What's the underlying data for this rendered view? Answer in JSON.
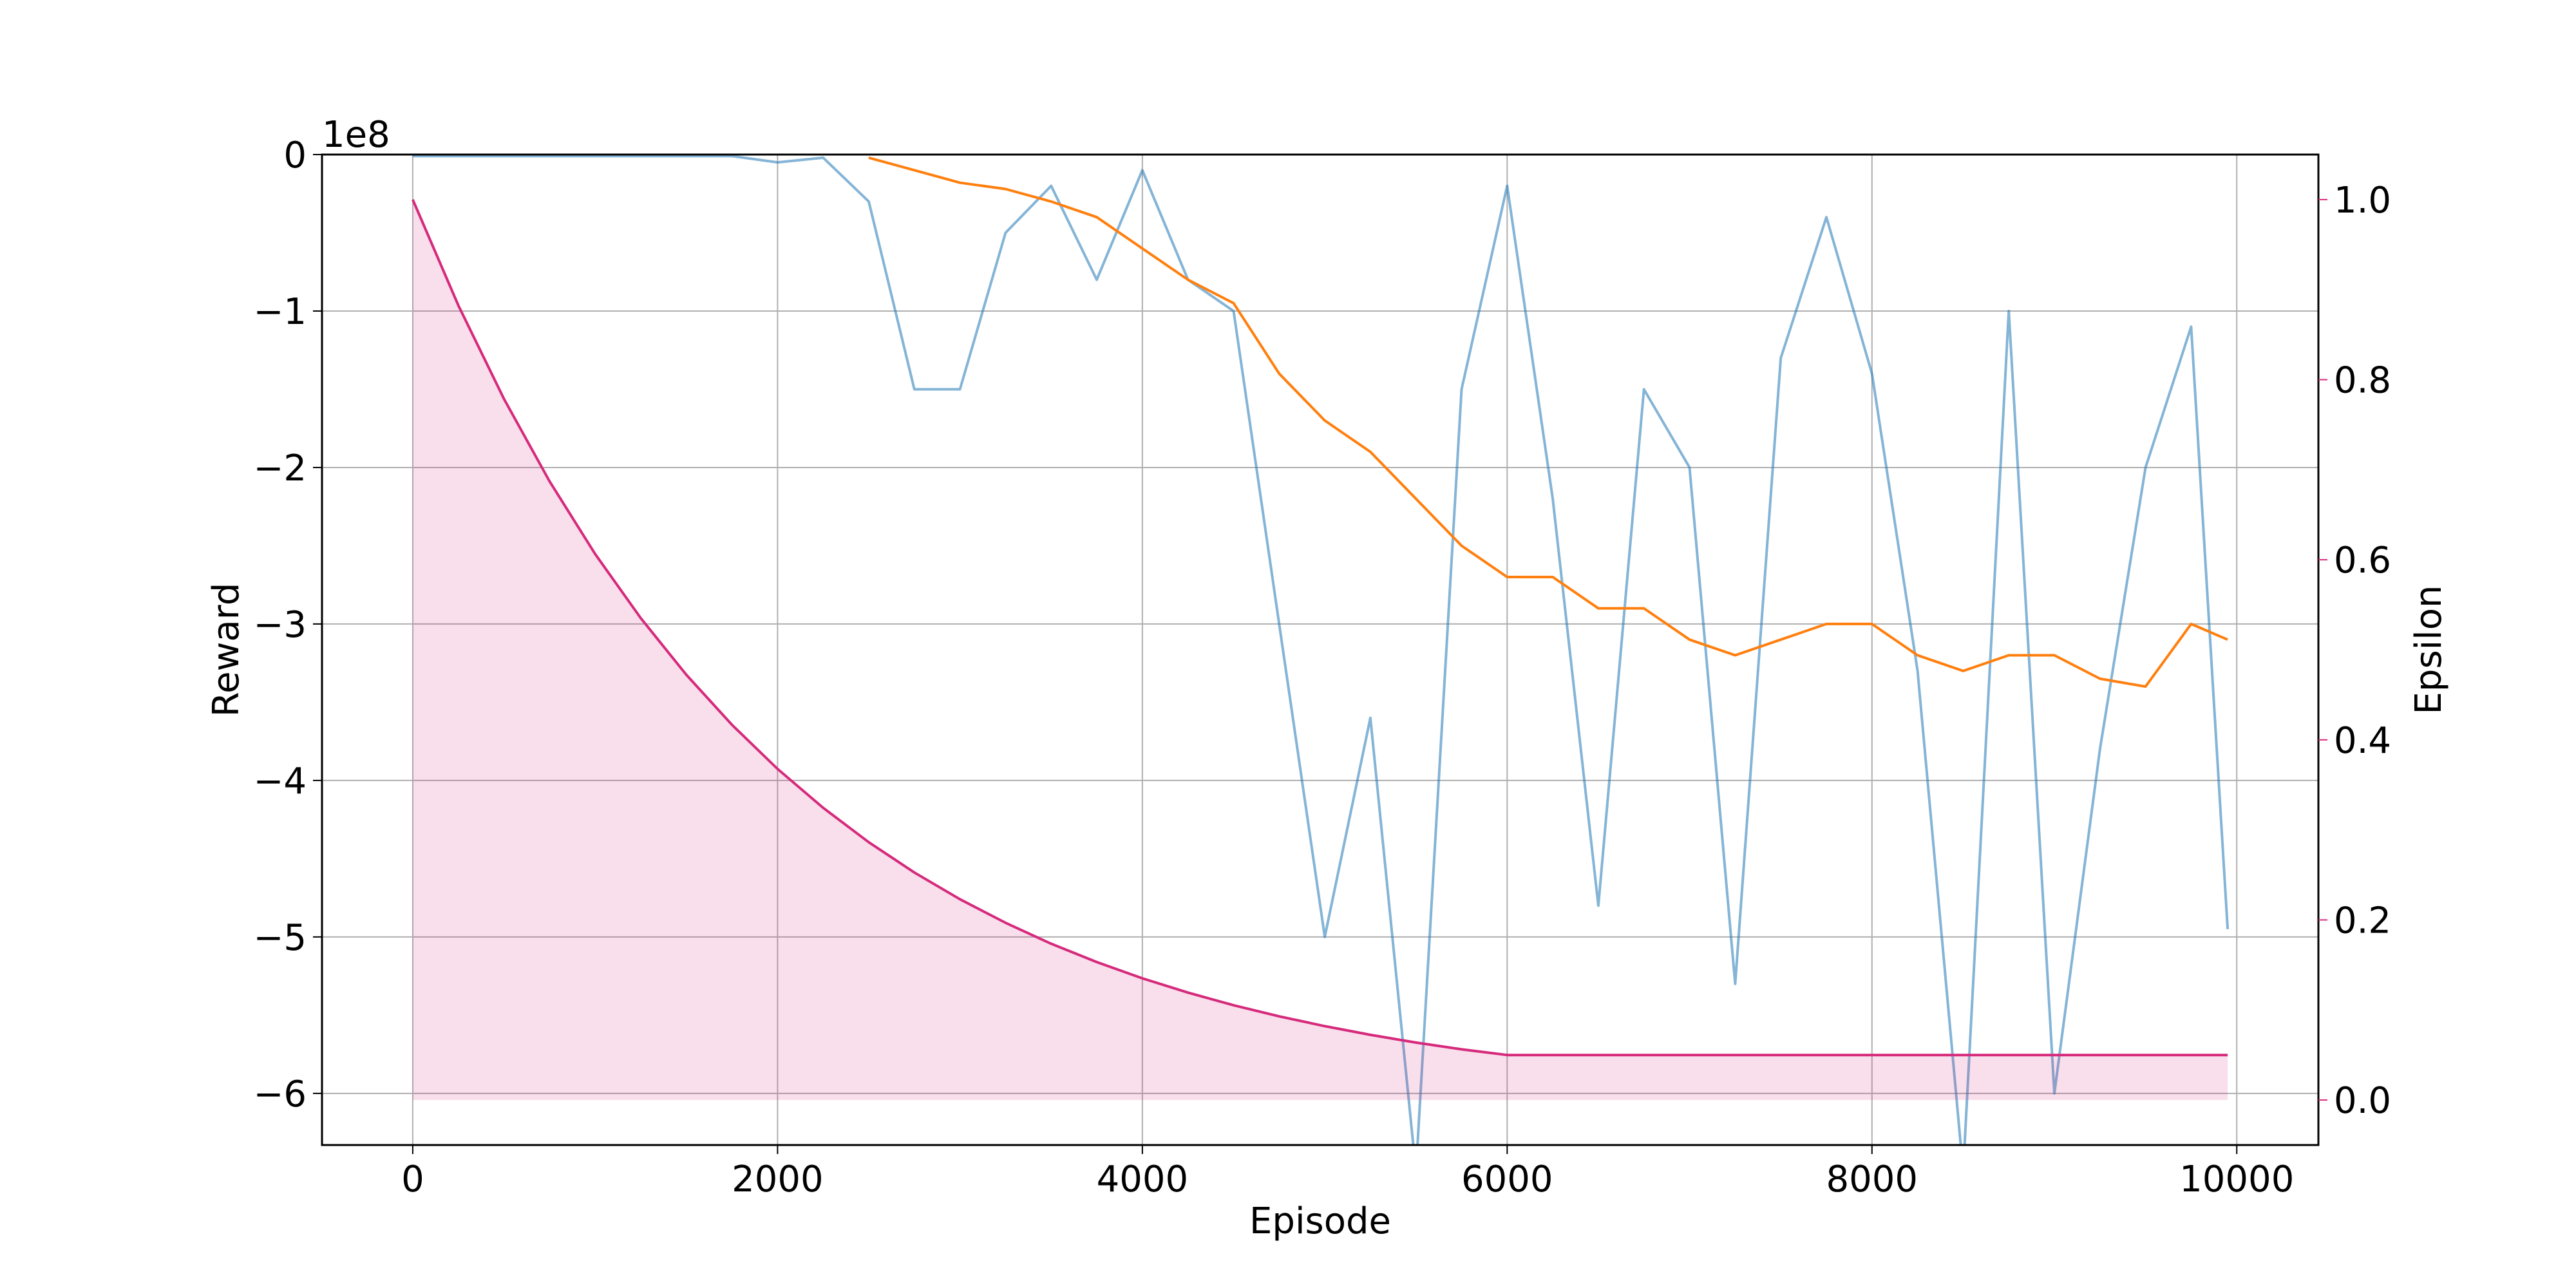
{
  "chart_data": {
    "type": "line",
    "x_label": "Episode",
    "y_label": "Reward",
    "y2_label": "Epsilon",
    "y_offset_label": "1e8",
    "grid": true,
    "x": [
      0,
      250,
      500,
      750,
      1000,
      1250,
      1500,
      1750,
      2000,
      2250,
      2500,
      2750,
      3000,
      3250,
      3500,
      3750,
      4000,
      4250,
      4500,
      4750,
      5000,
      5250,
      5500,
      5750,
      6000,
      6250,
      6500,
      6750,
      7000,
      7250,
      7500,
      7750,
      8000,
      8250,
      8500,
      8750,
      9000,
      9250,
      9500,
      9750,
      9950
    ],
    "xlim": [
      -497.5,
      10447.5
    ],
    "xticks": [
      0,
      2000,
      4000,
      6000,
      8000,
      10000
    ],
    "ylim": [
      -6.33,
      0
    ],
    "yticks": [
      0,
      {
        "value": -1,
        "label": "−1"
      },
      {
        "value": -2,
        "label": "−2"
      },
      {
        "value": -3,
        "label": "−3"
      },
      {
        "value": -4,
        "label": "−4"
      },
      {
        "value": -5,
        "label": "−5"
      },
      {
        "value": -6,
        "label": "−6"
      }
    ],
    "y2lim": [
      -0.05,
      1.05
    ],
    "y2ticks": [
      {
        "value": 0,
        "label": "0.0"
      },
      0.2,
      0.4,
      0.6,
      0.8,
      {
        "value": 1,
        "label": "1.0"
      }
    ],
    "y2_color": "#d62a7c",
    "series": [
      {
        "color": "#1f77b4",
        "opacity": 0.55,
        "values": [
          -0.01,
          -0.01,
          -0.01,
          -0.01,
          -0.01,
          -0.01,
          -0.01,
          -0.01,
          -0.05,
          -0.02,
          -0.3,
          -1.5,
          -1.5,
          -0.5,
          -0.2,
          -0.8,
          -0.1,
          -0.8,
          -1.0,
          -3.0,
          -5.0,
          -3.6,
          -6.5,
          -1.5,
          -0.2,
          -2.2,
          -4.8,
          -1.5,
          -2.0,
          -5.3,
          -1.3,
          -0.4,
          -1.4,
          -3.3,
          -6.5,
          -1.0,
          -6.0,
          -3.8,
          -2.0,
          -1.1,
          -4.95
        ]
      },
      {
        "color": "#ff7f0e",
        "opacity": 1,
        "values": [
          null,
          null,
          null,
          null,
          null,
          null,
          null,
          null,
          null,
          null,
          -0.02,
          -0.1,
          -0.18,
          -0.22,
          -0.3,
          -0.4,
          -0.6,
          -0.8,
          -0.95,
          -1.4,
          -1.7,
          -1.9,
          -2.2,
          -2.5,
          -2.7,
          -2.7,
          -2.9,
          -2.9,
          -3.1,
          -3.2,
          -3.1,
          -3.0,
          -3.0,
          -3.2,
          -3.3,
          -3.2,
          -3.2,
          -3.35,
          -3.4,
          -3.0,
          -3.1
        ]
      },
      {
        "color": "#d62a7c",
        "opacity": 1,
        "axis": "y2",
        "fill": true,
        "values": [
          1.0,
          0.8825,
          0.7787,
          0.6872,
          0.6064,
          0.5351,
          0.4722,
          0.4167,
          0.3677,
          0.3245,
          0.2863,
          0.2527,
          0.223,
          0.1968,
          0.1736,
          0.1532,
          0.1352,
          0.1193,
          0.1053,
          0.0929,
          0.082,
          0.0724,
          0.0638,
          0.0563,
          0.05,
          0.05,
          0.05,
          0.05,
          0.05,
          0.05,
          0.05,
          0.05,
          0.05,
          0.05,
          0.05,
          0.05,
          0.05,
          0.05,
          0.05,
          0.05,
          0.05
        ]
      }
    ]
  }
}
